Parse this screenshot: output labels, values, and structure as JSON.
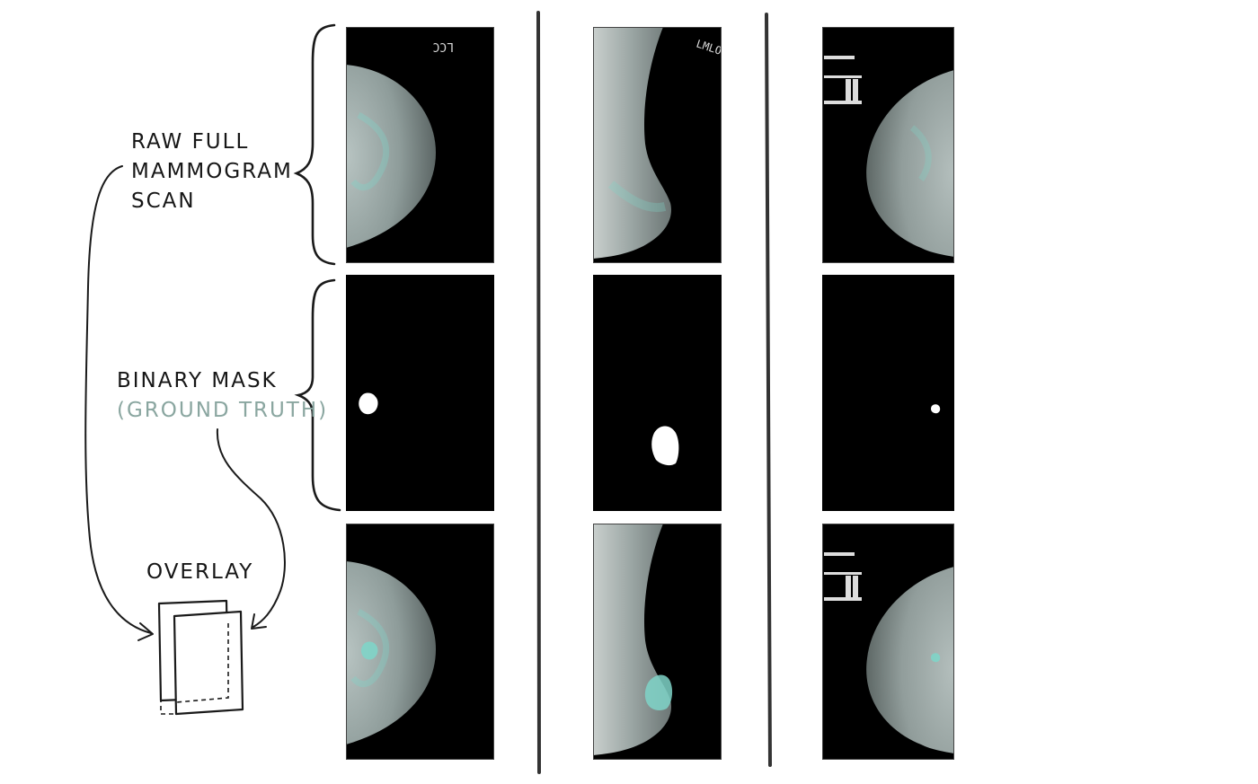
{
  "labels": {
    "raw": [
      "RAW FULL",
      "MAMMOGRAM",
      "SCAN"
    ],
    "mask": "BINARY MASK",
    "mask_sub": "(GROUND TRUTH)",
    "overlay": "OVERLAY"
  },
  "image_tags": {
    "col1": "LCC",
    "col2": "LMLO",
    "col3": "MARKER"
  },
  "colors": {
    "ink": "#161616",
    "accent": "#8aa6a0",
    "tissue_highlight": "#7fd4c8",
    "image_bg": "#000000",
    "mask_fill": "#ffffff"
  },
  "rows": [
    "raw-scan",
    "binary-mask",
    "overlay"
  ],
  "columns": [
    "cc-view-left",
    "mlo-view-left",
    "cc-view-right"
  ]
}
